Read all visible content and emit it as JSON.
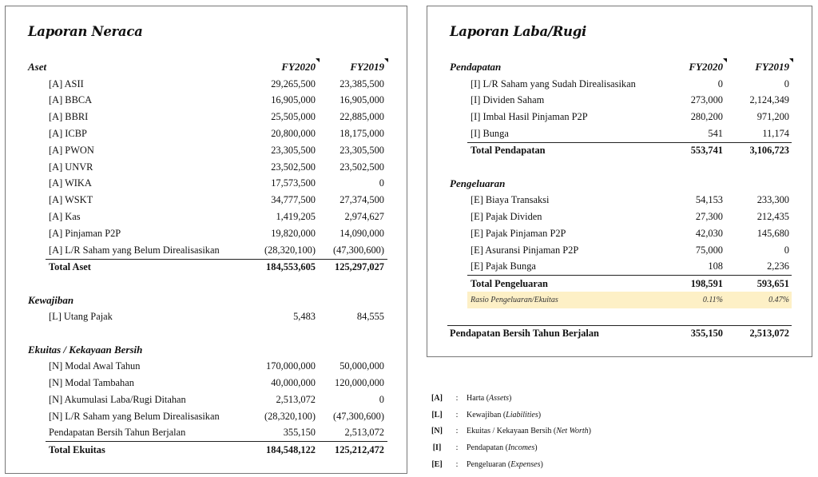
{
  "neraca": {
    "title": "Laporan Neraca",
    "rows": [
      {
        "t": "hdr",
        "label": "Aset",
        "c1": "FY2020",
        "c2": "FY2019"
      },
      {
        "t": "ind",
        "label": "[A] ASII",
        "c1": "29,265,500",
        "c2": "23,385,500"
      },
      {
        "t": "ind",
        "label": "[A] BBCA",
        "c1": "16,905,000",
        "c2": "16,905,000"
      },
      {
        "t": "ind",
        "label": "[A] BBRI",
        "c1": "25,505,000",
        "c2": "22,885,000"
      },
      {
        "t": "ind",
        "label": "[A] ICBP",
        "c1": "20,800,000",
        "c2": "18,175,000"
      },
      {
        "t": "ind",
        "label": "[A] PWON",
        "c1": "23,305,500",
        "c2": "23,305,500"
      },
      {
        "t": "ind",
        "label": "[A] UNVR",
        "c1": "23,502,500",
        "c2": "23,502,500"
      },
      {
        "t": "ind",
        "label": "[A] WIKA",
        "c1": "17,573,500",
        "c2": "0"
      },
      {
        "t": "ind",
        "label": "[A] WSKT",
        "c1": "34,777,500",
        "c2": "27,374,500"
      },
      {
        "t": "ind",
        "label": "[A] Kas",
        "c1": "1,419,205",
        "c2": "2,974,627"
      },
      {
        "t": "ind",
        "label": "[A] Pinjaman P2P",
        "c1": "19,820,000",
        "c2": "14,090,000"
      },
      {
        "t": "ind",
        "label": "[A] L/R Saham yang Belum Direalisasikan",
        "c1": "(28,320,100)",
        "c2": "(47,300,600)"
      },
      {
        "t": "total lined",
        "label": "Total Aset",
        "c1": "184,553,605",
        "c2": "125,297,027"
      },
      {
        "t": "blank"
      },
      {
        "t": "hdr",
        "label": "Kewajiban"
      },
      {
        "t": "ind",
        "label": "[L] Utang Pajak",
        "c1": "5,483",
        "c2": "84,555"
      },
      {
        "t": "blank"
      },
      {
        "t": "hdr",
        "label": "Ekuitas / Kekayaan Bersih"
      },
      {
        "t": "ind",
        "label": "[N] Modal Awal Tahun",
        "c1": "170,000,000",
        "c2": "50,000,000"
      },
      {
        "t": "ind",
        "label": "[N] Modal Tambahan",
        "c1": "40,000,000",
        "c2": "120,000,000"
      },
      {
        "t": "ind",
        "label": "[N] Akumulasi Laba/Rugi Ditahan",
        "c1": "2,513,072",
        "c2": "0"
      },
      {
        "t": "ind",
        "label": "[N] L/R Saham yang Belum Direalisasikan",
        "c1": "(28,320,100)",
        "c2": "(47,300,600)"
      },
      {
        "t": "ind",
        "label": "Pendapatan Bersih Tahun Berjalan",
        "c1": "355,150",
        "c2": "2,513,072"
      },
      {
        "t": "total lined",
        "label": "Total Ekuitas",
        "c1": "184,548,122",
        "c2": "125,212,472"
      }
    ]
  },
  "labarugi": {
    "title": "Laporan Laba/Rugi",
    "rows": [
      {
        "t": "hdr",
        "label": "Pendapatan",
        "c1": "FY2020",
        "c2": "FY2019"
      },
      {
        "t": "ind",
        "label": "[I] L/R Saham yang Sudah Direalisasikan",
        "c1": "0",
        "c2": "0"
      },
      {
        "t": "ind",
        "label": "[I] Dividen Saham",
        "c1": "273,000",
        "c2": "2,124,349"
      },
      {
        "t": "ind",
        "label": "[I] Imbal Hasil Pinjaman P2P",
        "c1": "280,200",
        "c2": "971,200"
      },
      {
        "t": "ind",
        "label": "[I] Bunga",
        "c1": "541",
        "c2": "11,174"
      },
      {
        "t": "total lined",
        "label": "Total Pendapatan",
        "c1": "553,741",
        "c2": "3,106,723"
      },
      {
        "t": "blank"
      },
      {
        "t": "hdr",
        "label": "Pengeluaran"
      },
      {
        "t": "ind",
        "label": "[E] Biaya Transaksi",
        "c1": "54,153",
        "c2": "233,300"
      },
      {
        "t": "ind",
        "label": "[E] Pajak Dividen",
        "c1": "27,300",
        "c2": "212,435"
      },
      {
        "t": "ind",
        "label": "[E] Pajak Pinjaman P2P",
        "c1": "42,030",
        "c2": "145,680"
      },
      {
        "t": "ind",
        "label": "[E] Asuransi Pinjaman P2P",
        "c1": "75,000",
        "c2": "0"
      },
      {
        "t": "ind",
        "label": "[E] Pajak Bunga",
        "c1": "108",
        "c2": "2,236"
      },
      {
        "t": "total lined",
        "label": "Total Pengeluaran",
        "c1": "198,591",
        "c2": "593,651"
      },
      {
        "t": "ratio",
        "label": "Rasio Pengeluaran/Ekuitas",
        "c1": "0.11%",
        "c2": "0.47%"
      },
      {
        "t": "blank"
      },
      {
        "t": "total lined net",
        "label": "Pendapatan Bersih Tahun Berjalan",
        "c1": "355,150",
        "c2": "2,513,072"
      }
    ]
  },
  "legend": [
    {
      "code": "[A]",
      "text": "Harta (",
      "em": "Assets",
      "end": ")"
    },
    {
      "code": "[L]",
      "text": "Kewajiban (",
      "em": "Liabilities",
      "end": ")"
    },
    {
      "code": "[N]",
      "text": "Ekuitas / Kekayaan Bersih (",
      "em": "Net Worth",
      "end": ")"
    },
    {
      "code": "[I]",
      "text": "Pendapatan (",
      "em": "Incomes",
      "end": ")"
    },
    {
      "code": "[E]",
      "text": "Pengeluaran (",
      "em": "Expenses",
      "end": ")"
    }
  ],
  "legend_sep": ":",
  "colors": {
    "ratio_highlight": "#fdf0c6"
  }
}
